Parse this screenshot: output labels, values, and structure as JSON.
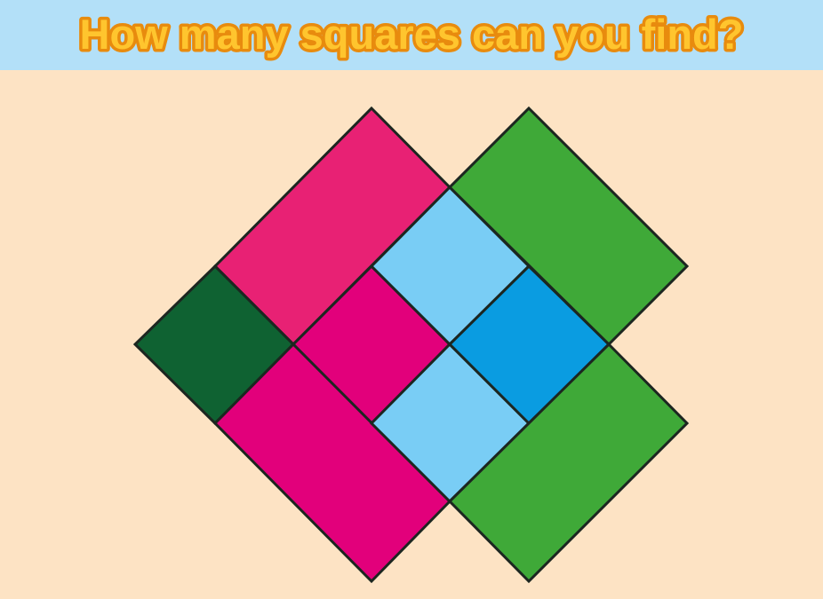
{
  "header": {
    "title": "How many squares can you find?"
  },
  "colors": {
    "background": "#fde3c4",
    "header_bg": "#b3e0f8",
    "title_fill": "#ffc52e",
    "title_stroke": "#e88b0e",
    "outline": "#1c2620",
    "pink_light": "#e82174",
    "pink": "#e2007b",
    "dark_green": "#0f6232",
    "green": "#3fa938",
    "light_blue": "#79cdf5",
    "blue": "#0a9ce1"
  },
  "puzzle": {
    "shapes": [
      {
        "name": "pink-rectangle-top",
        "color": "pink_light"
      },
      {
        "name": "dark-green-square",
        "color": "dark_green"
      },
      {
        "name": "pink-square-center",
        "color": "pink"
      },
      {
        "name": "pink-rectangle-bottom",
        "color": "pink"
      },
      {
        "name": "light-blue-square-top",
        "color": "light_blue"
      },
      {
        "name": "light-blue-square-bottom",
        "color": "light_blue"
      },
      {
        "name": "blue-square-right",
        "color": "blue"
      },
      {
        "name": "green-rectangle-top",
        "color": "green"
      },
      {
        "name": "green-rectangle-bottom",
        "color": "green"
      }
    ]
  }
}
